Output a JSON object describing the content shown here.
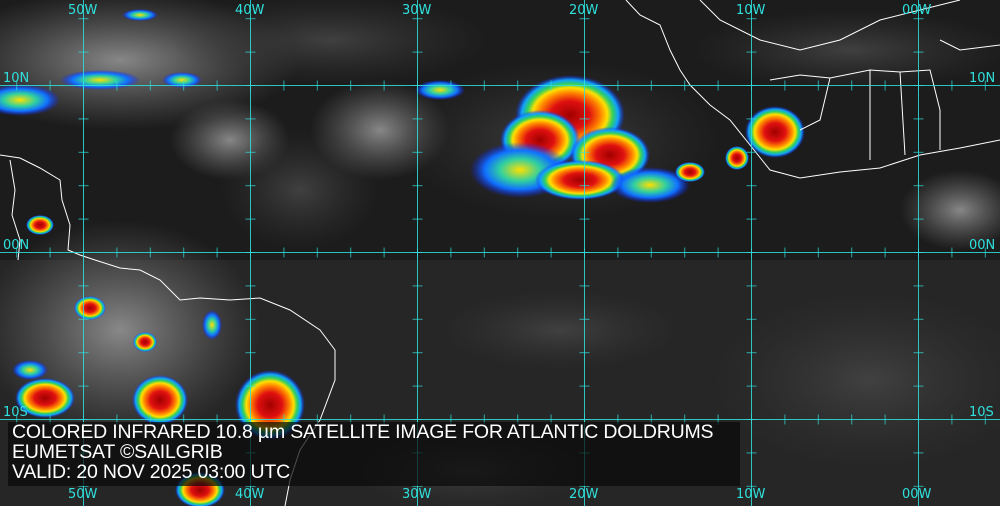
{
  "caption": {
    "title": "COLORED INFRARED 10.8 µm SATELLITE IMAGE FOR ATLANTIC DOLDRUMS",
    "source": "EUMETSAT ©SAILGRIB",
    "valid": "VALID:  20 NOV 2025 03:00 UTC"
  },
  "grid": {
    "longitudes": [
      "50W",
      "40W",
      "30W",
      "20W",
      "10W",
      "00W"
    ],
    "latitudes": [
      "10N",
      "00N",
      "10S"
    ]
  },
  "colors": {
    "gridline": "#2fe0dc",
    "coastline": "#ffffff",
    "cold_cloud_top": "#c00000",
    "mid_cloud_top": "#ffd000",
    "warm_cloud_edge": "#1030ff"
  }
}
